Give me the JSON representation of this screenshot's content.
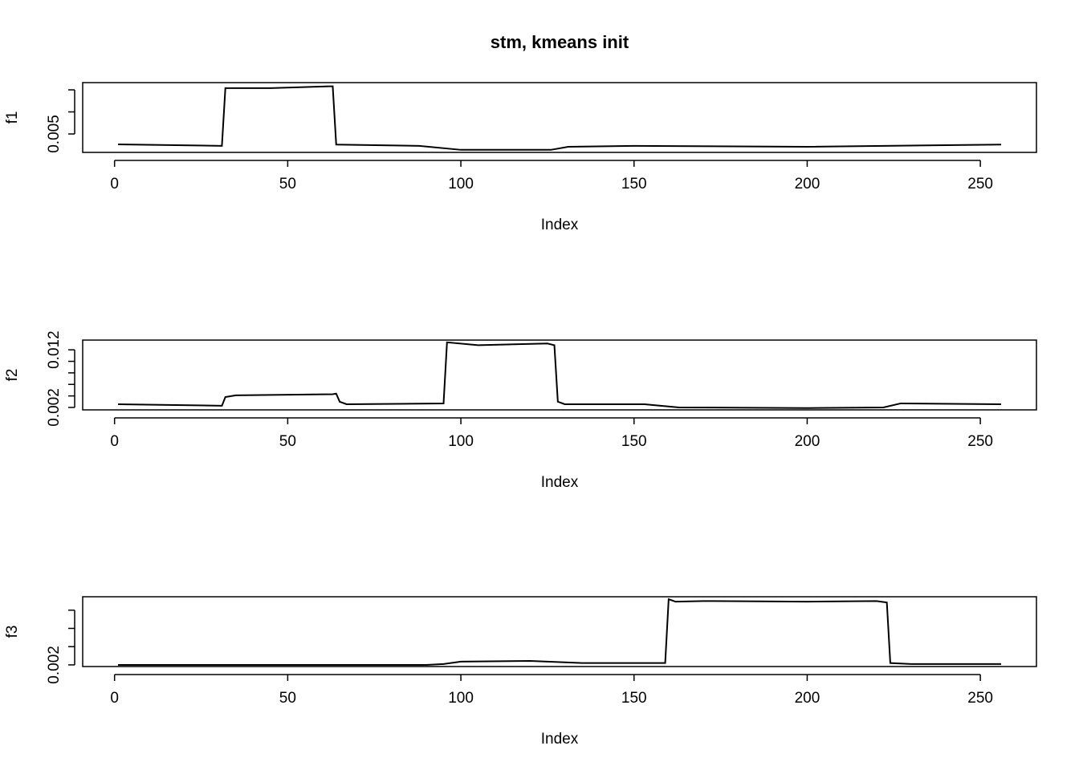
{
  "chart_data": [
    {
      "type": "line",
      "title": "stm, kmeans init",
      "xlabel": "Index",
      "ylabel": "f1",
      "color": "#000000",
      "x": [
        1,
        31,
        32,
        45,
        62,
        63,
        64,
        88,
        100,
        126,
        131,
        150,
        200,
        256
      ],
      "values": [
        0.00264,
        0.0023,
        0.0154,
        0.0154,
        0.0158,
        0.0158,
        0.0026,
        0.0023,
        0.0014,
        0.0014,
        0.0021,
        0.0023,
        0.0021,
        0.0026
      ],
      "xlim": [
        -9.2,
        266.2
      ],
      "xticks": [
        0,
        50,
        100,
        150,
        200,
        250
      ],
      "ylim": [
        0.00082,
        0.01664
      ],
      "yticks": [
        0.005,
        0.01,
        0.015
      ]
    },
    {
      "type": "line",
      "xlabel": "Index",
      "ylabel": "f2",
      "color": "#000000",
      "x": [
        1,
        31,
        32,
        35,
        63,
        64,
        65,
        67,
        95,
        96,
        105,
        125,
        127,
        128,
        130,
        153,
        163,
        200,
        222,
        227,
        256
      ],
      "values": [
        0.00256,
        0.0023,
        0.0038,
        0.0041,
        0.0043,
        0.0044,
        0.003,
        0.00256,
        0.0027,
        0.0133,
        0.0128,
        0.0131,
        0.0128,
        0.003,
        0.00256,
        0.00256,
        0.002,
        0.0019,
        0.002,
        0.0027,
        0.00256
      ],
      "xlim": [
        -9.2,
        266.2
      ],
      "xticks": [
        0,
        50,
        100,
        150,
        200,
        250
      ],
      "ylim": [
        0.00158,
        0.01369
      ],
      "yticks": [
        0.002,
        0.004,
        0.006,
        0.008,
        0.01,
        0.012
      ]
    },
    {
      "type": "line",
      "xlabel": "Index",
      "ylabel": "f3",
      "color": "#000000",
      "x": [
        1,
        90,
        95,
        100,
        120,
        135,
        155,
        159,
        160,
        162,
        170,
        200,
        220,
        223,
        224,
        230,
        256
      ],
      "values": [
        0.002,
        0.002,
        0.0021,
        0.00236,
        0.00244,
        0.0022,
        0.0022,
        0.0022,
        0.0092,
        0.00893,
        0.009,
        0.00893,
        0.009,
        0.00884,
        0.0022,
        0.0021,
        0.0021
      ],
      "xlim": [
        -9.2,
        266.2
      ],
      "xticks": [
        0,
        50,
        100,
        150,
        200,
        250
      ],
      "ylim": [
        0.00182,
        0.00947
      ],
      "yticks": [
        0.002,
        0.004,
        0.006,
        0.008
      ]
    }
  ]
}
